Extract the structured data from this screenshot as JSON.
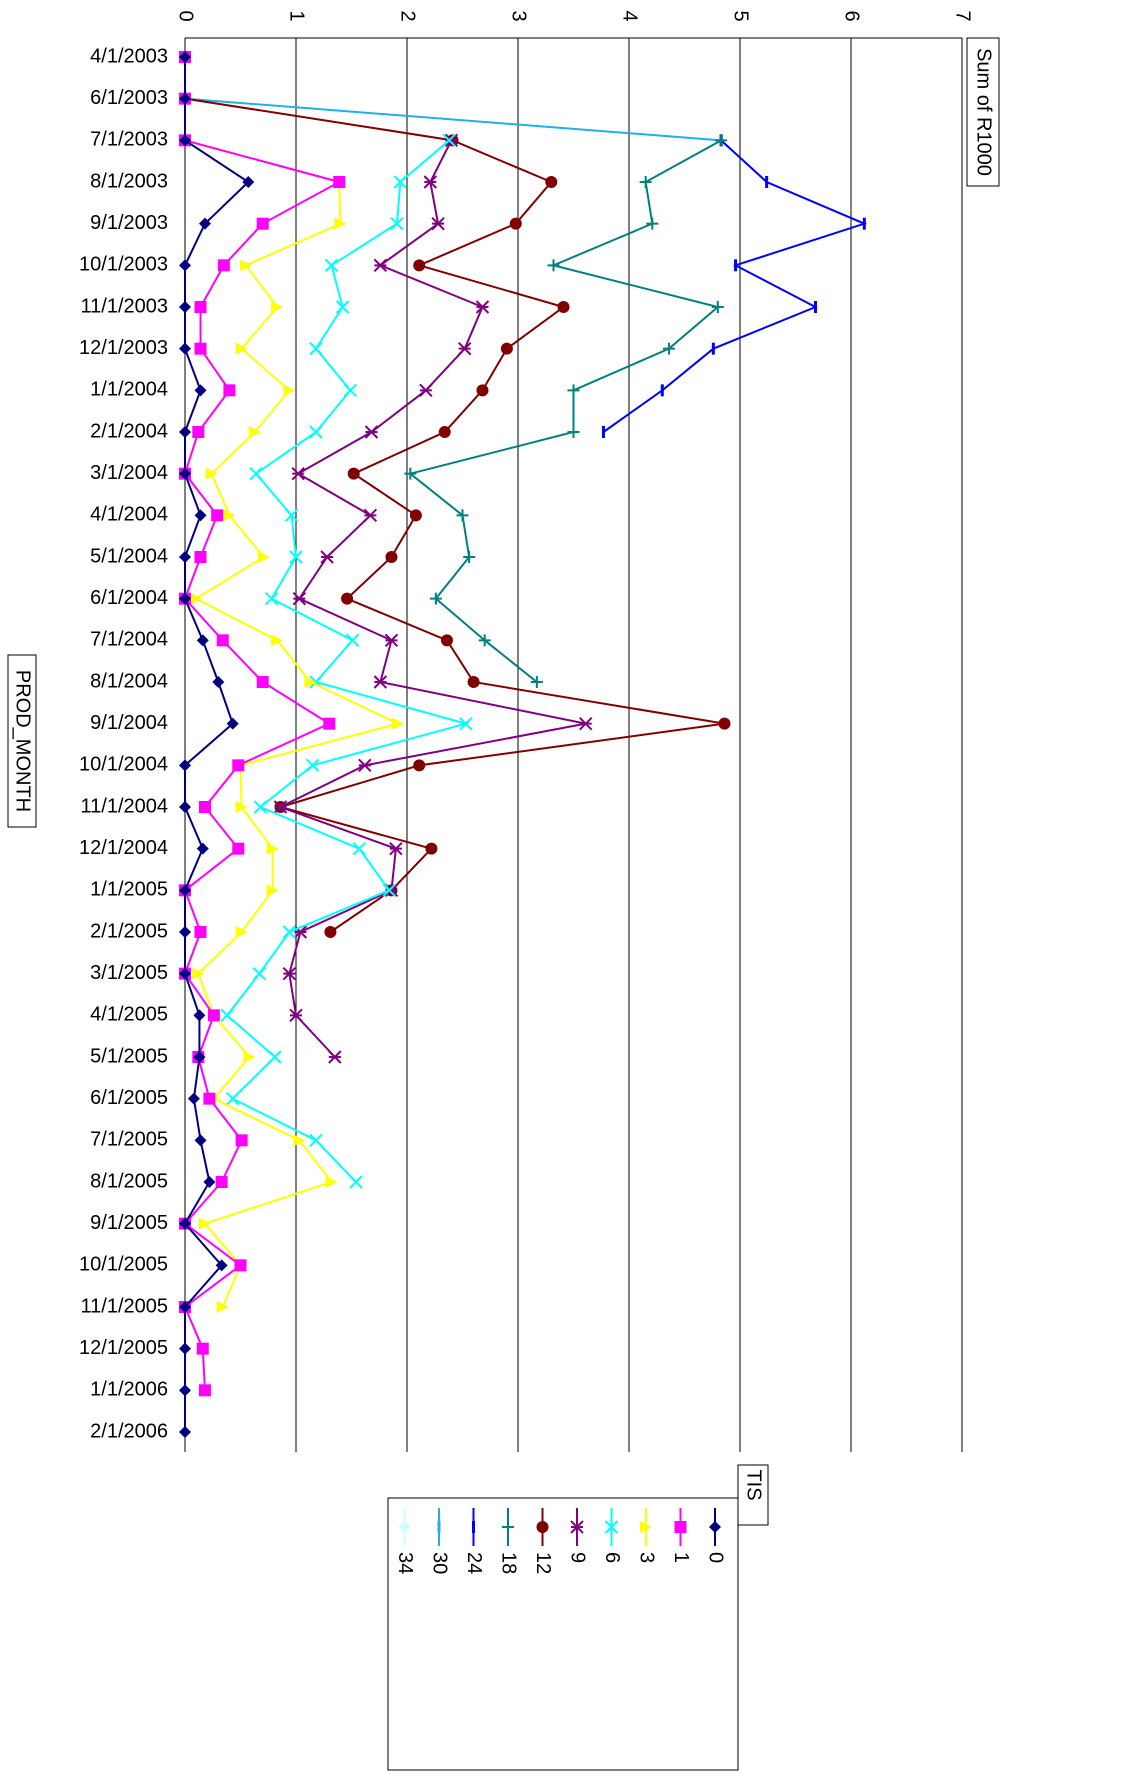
{
  "chart_data": {
    "type": "line",
    "y_label": "Sum of R1000",
    "x_label": "PROD_MONTH",
    "legend_title": "TIS",
    "categories": [
      "4/1/2003",
      "6/1/2003",
      "7/1/2003",
      "8/1/2003",
      "9/1/2003",
      "10/1/2003",
      "11/1/2003",
      "12/1/2003",
      "1/1/2004",
      "2/1/2004",
      "3/1/2004",
      "4/1/2004",
      "5/1/2004",
      "6/1/2004",
      "7/1/2004",
      "8/1/2004",
      "9/1/2004",
      "10/1/2004",
      "11/1/2004",
      "12/1/2004",
      "1/1/2005",
      "2/1/2005",
      "3/1/2005",
      "4/1/2005",
      "5/1/2005",
      "6/1/2005",
      "7/1/2005",
      "8/1/2005",
      "9/1/2005",
      "10/1/2005",
      "11/1/2005",
      "12/1/2005",
      "1/1/2006",
      "2/1/2006"
    ],
    "ylim": [
      0,
      7
    ],
    "yticks": [
      0,
      1,
      2,
      3,
      4,
      5,
      6,
      7
    ],
    "grid": true,
    "series": [
      {
        "name": "0",
        "color": "#000080",
        "marker": "diamond",
        "values": [
          0,
          0,
          0,
          0.57,
          0.18,
          0,
          0,
          0,
          0.14,
          0,
          0,
          0.14,
          0,
          0,
          0.16,
          0.3,
          0.43,
          0,
          0,
          0.16,
          0,
          0,
          0,
          0.13,
          0.13,
          0.08,
          0.14,
          0.22,
          0,
          0.33,
          0,
          0,
          0,
          0
        ]
      },
      {
        "name": "1",
        "color": "#ff00ff",
        "marker": "square",
        "values": [
          0,
          0,
          0,
          1.39,
          0.7,
          0.35,
          0.14,
          0.14,
          0.4,
          0.12,
          0,
          0.29,
          0.14,
          0,
          0.34,
          0.7,
          1.3,
          0.48,
          0.18,
          0.48,
          0,
          0.14,
          0,
          0.26,
          0.12,
          0.22,
          0.51,
          0.33,
          0,
          0.5,
          0,
          0.16,
          0.18,
          null
        ]
      },
      {
        "name": "3",
        "color": "#ffff00",
        "marker": "triangle",
        "values": [
          0,
          0,
          0,
          1.39,
          1.4,
          0.55,
          0.83,
          0.51,
          0.94,
          0.63,
          0.24,
          0.4,
          0.71,
          0.1,
          0.83,
          1.13,
          1.92,
          0.5,
          0.51,
          0.79,
          0.79,
          0.51,
          0.12,
          0.26,
          0.58,
          0.26,
          1.03,
          1.32,
          0.18,
          0.5,
          0.34,
          null,
          null,
          null
        ]
      },
      {
        "name": "6",
        "color": "#00ffff",
        "marker": "x",
        "values": [
          null,
          null,
          2.38,
          1.94,
          1.91,
          1.32,
          1.42,
          1.18,
          1.49,
          1.18,
          0.64,
          0.96,
          1.0,
          0.78,
          1.51,
          1.18,
          2.53,
          1.15,
          0.68,
          1.57,
          1.84,
          0.94,
          0.67,
          0.38,
          0.81,
          0.43,
          1.18,
          1.54,
          null,
          null,
          null,
          null,
          null,
          null
        ]
      },
      {
        "name": "9",
        "color": "#800080",
        "marker": "star",
        "values": [
          null,
          null,
          2.4,
          2.21,
          2.28,
          1.76,
          2.68,
          2.52,
          2.17,
          1.68,
          1.02,
          1.67,
          1.28,
          1.03,
          1.86,
          1.76,
          3.61,
          1.62,
          0.86,
          1.9,
          1.86,
          1.04,
          0.94,
          1.0,
          1.35,
          null,
          null,
          null,
          null,
          null,
          null,
          null,
          null,
          null
        ]
      },
      {
        "name": "12",
        "color": "#800000",
        "marker": "circle",
        "values": [
          0,
          0,
          2.41,
          3.3,
          2.98,
          2.11,
          3.41,
          2.9,
          2.68,
          2.34,
          1.52,
          2.08,
          1.86,
          1.46,
          2.36,
          2.6,
          4.86,
          2.11,
          0.86,
          2.22,
          1.86,
          1.31,
          null,
          null,
          null,
          null,
          null,
          null,
          null,
          null,
          null,
          null,
          null,
          null
        ]
      },
      {
        "name": "18",
        "color": "#008080",
        "marker": "plus",
        "values": [
          null,
          null,
          4.83,
          4.15,
          4.21,
          3.32,
          4.8,
          4.36,
          3.5,
          3.5,
          2.03,
          2.5,
          2.56,
          2.26,
          2.7,
          3.17,
          null,
          null,
          null,
          null,
          null,
          null,
          null,
          null,
          null,
          null,
          null,
          null,
          null,
          null,
          null,
          null,
          null,
          null
        ]
      },
      {
        "name": "24",
        "color": "#0000ff",
        "marker": "dash",
        "values": [
          null,
          null,
          4.83,
          5.24,
          6.12,
          4.96,
          5.68,
          4.76,
          4.3,
          3.77,
          null,
          null,
          null,
          null,
          null,
          null,
          null,
          null,
          null,
          null,
          null,
          null,
          null,
          null,
          null,
          null,
          null,
          null,
          null,
          null,
          null,
          null,
          null,
          null
        ]
      },
      {
        "name": "30",
        "color": "#20b0e8",
        "marker": "dash",
        "values": [
          0,
          0,
          4.83,
          null,
          null,
          null,
          null,
          null,
          null,
          null,
          null,
          null,
          null,
          null,
          null,
          null,
          null,
          null,
          null,
          null,
          null,
          null,
          null,
          null,
          null,
          null,
          null,
          null,
          null,
          null,
          null,
          null,
          null,
          null
        ]
      },
      {
        "name": "34",
        "color": "#ccffff",
        "marker": "diamond",
        "values": [
          0,
          0,
          null,
          null,
          null,
          null,
          null,
          null,
          null,
          null,
          null,
          null,
          null,
          null,
          null,
          null,
          null,
          null,
          null,
          null,
          null,
          null,
          null,
          null,
          null,
          null,
          null,
          null,
          null,
          null,
          null,
          null,
          null,
          null
        ]
      }
    ]
  }
}
